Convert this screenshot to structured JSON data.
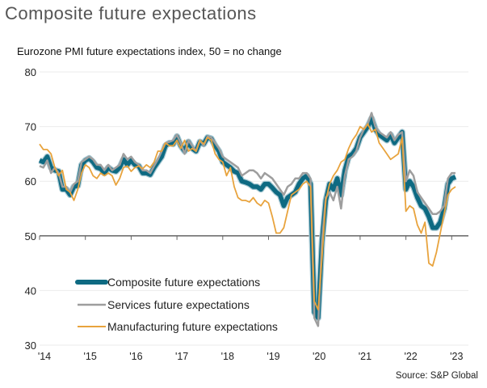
{
  "chart_data": {
    "type": "line",
    "title": "Composite future expectations",
    "subtitle": "Eurozone PMI future expectations index, 50 = no change",
    "source": "Source: S&P Global",
    "xlabel": "",
    "ylabel": "",
    "ylim": [
      30,
      80
    ],
    "yticks": [
      "80",
      "70",
      "60",
      "50",
      "40",
      "30"
    ],
    "ytick_values": [
      80,
      70,
      60,
      50,
      40,
      30
    ],
    "xticks": [
      "'14",
      "'15",
      "'16",
      "'17",
      "'18",
      "'19",
      "'20",
      "'21",
      "'22",
      "'23"
    ],
    "xtick_years": [
      2014,
      2015,
      2016,
      2017,
      2018,
      2019,
      2020,
      2021,
      2022,
      2023
    ],
    "x_start": "2014-01",
    "x_frequency": "monthly",
    "baseline": 50,
    "grid": true,
    "legend_position": "bottom-left",
    "series": [
      {
        "name": "Composite future expectations",
        "color": "#0e6a82",
        "values": [
          63.8,
          63.5,
          64.5,
          62.5,
          62.0,
          61.8,
          58.5,
          58.5,
          57.5,
          59.0,
          59.2,
          63.0,
          63.8,
          64.2,
          63.5,
          62.5,
          62.3,
          61.5,
          62.5,
          62.0,
          61.8,
          62.5,
          64.0,
          63.0,
          63.8,
          63.0,
          62.8,
          61.5,
          61.5,
          61.2,
          62.5,
          63.5,
          64.5,
          66.5,
          67.0,
          66.8,
          68.2,
          66.5,
          65.5,
          67.2,
          66.0,
          65.5,
          67.2,
          66.8,
          68.0,
          67.8,
          66.5,
          65.5,
          63.5,
          63.0,
          62.5,
          61.8,
          61.5,
          60.0,
          59.8,
          59.5,
          59.0,
          59.0,
          58.5,
          59.5,
          59.5,
          58.8,
          58.0,
          57.5,
          55.5,
          57.0,
          57.5,
          58.0,
          59.5,
          60.5,
          61.0,
          59.5,
          36.0,
          35.0,
          49.0,
          56.5,
          59.5,
          58.5,
          60.5,
          57.5,
          62.0,
          64.5,
          65.0,
          66.0,
          68.0,
          69.0,
          70.0,
          71.5,
          69.5,
          68.5,
          68.0,
          67.5,
          68.5,
          67.0,
          68.0,
          69.0,
          58.5,
          60.0,
          59.0,
          57.0,
          55.5,
          55.0,
          53.5,
          51.5,
          51.5,
          52.5,
          55.0,
          59.5,
          60.5,
          60.8
        ]
      },
      {
        "name": "Services future expectations",
        "color": "#9e9e9e",
        "values": [
          62.8,
          62.5,
          63.8,
          61.5,
          62.5,
          61.5,
          59.0,
          59.0,
          58.0,
          59.5,
          60.0,
          63.5,
          64.0,
          64.5,
          64.0,
          63.0,
          63.0,
          62.0,
          63.0,
          62.0,
          62.5,
          63.0,
          65.0,
          64.0,
          64.5,
          63.5,
          63.0,
          62.0,
          62.0,
          61.5,
          62.8,
          64.0,
          65.5,
          67.0,
          67.2,
          67.5,
          68.5,
          67.0,
          65.0,
          67.5,
          66.5,
          65.5,
          67.5,
          66.5,
          68.2,
          68.0,
          67.0,
          66.0,
          64.5,
          64.0,
          63.5,
          63.0,
          62.5,
          61.0,
          61.5,
          62.0,
          62.0,
          61.5,
          60.5,
          61.5,
          61.0,
          60.5,
          59.5,
          58.5,
          57.5,
          59.0,
          59.5,
          60.5,
          60.5,
          61.5,
          61.5,
          60.5,
          35.0,
          33.5,
          49.0,
          57.0,
          58.0,
          56.5,
          59.0,
          55.0,
          61.0,
          64.0,
          64.5,
          65.5,
          68.0,
          69.5,
          70.5,
          72.5,
          70.0,
          69.0,
          68.5,
          68.0,
          69.0,
          67.5,
          68.5,
          69.0,
          60.0,
          62.0,
          61.0,
          58.0,
          57.0,
          56.0,
          55.0,
          54.0,
          54.0,
          54.5,
          55.5,
          60.5,
          61.5,
          61.5
        ]
      },
      {
        "name": "Manufacturing future expectations",
        "color": "#e8a33d",
        "values": [
          66.8,
          65.8,
          65.8,
          65.0,
          62.5,
          61.0,
          62.0,
          58.5,
          58.0,
          56.5,
          58.5,
          61.5,
          63.0,
          62.5,
          61.0,
          60.5,
          61.5,
          61.0,
          61.5,
          61.0,
          59.3,
          60.5,
          62.5,
          62.8,
          61.8,
          62.5,
          62.8,
          62.3,
          63.0,
          62.5,
          63.5,
          65.5,
          65.5,
          67.0,
          66.5,
          66.5,
          67.5,
          66.0,
          67.5,
          65.5,
          66.0,
          65.5,
          67.5,
          66.8,
          68.0,
          67.5,
          65.0,
          64.0,
          63.5,
          61.0,
          62.5,
          59.0,
          57.0,
          56.5,
          56.5,
          56.2,
          57.0,
          56.0,
          55.5,
          56.5,
          56.0,
          53.5,
          50.5,
          50.5,
          51.5,
          54.5,
          57.5,
          58.0,
          58.5,
          59.5,
          60.0,
          59.0,
          38.0,
          36.5,
          46.0,
          56.5,
          59.5,
          61.0,
          62.0,
          63.5,
          64.0,
          66.0,
          67.5,
          68.5,
          70.0,
          69.5,
          70.5,
          69.0,
          69.5,
          67.0,
          66.0,
          65.0,
          64.0,
          64.5,
          65.0,
          68.0,
          54.5,
          55.5,
          55.0,
          52.0,
          50.5,
          52.5,
          45.0,
          44.5,
          47.0,
          50.5,
          54.0,
          57.5,
          58.5,
          59.0
        ]
      }
    ]
  }
}
